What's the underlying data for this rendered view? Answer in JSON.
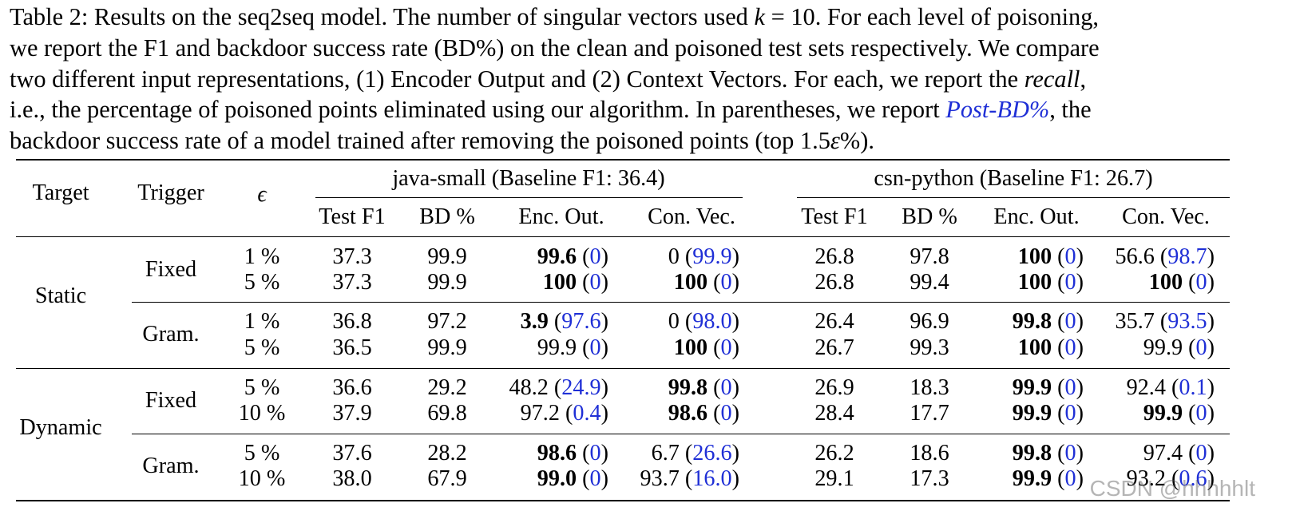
{
  "caption": {
    "lines": [
      [
        "Table 2: Results on the seq2seq model. The number of singular vectors used ",
        {
          "math": "k"
        },
        " = 10. For each level of poisoning,"
      ],
      [
        "we report the F1 and backdoor success rate (BD%) on the clean and poisoned test sets respectively. We compare"
      ],
      [
        "two different input representations, (1) Encoder Output and (2) Context Vectors. For each, we report the ",
        {
          "ital": "recall"
        },
        ","
      ],
      [
        "i.e., the percentage of poisoned points eliminated using our algorithm. In parentheses, we report ",
        {
          "link": "Post-BD%"
        },
        ", the"
      ],
      [
        "backdoor success rate of a model trained after removing the poisoned points (top 1.5",
        {
          "math": "ε"
        },
        "%)."
      ]
    ]
  },
  "header": {
    "target": "Target",
    "trigger": "Trigger",
    "epsilon": "ϵ",
    "group1": "java-small (Baseline F1: 36.4)",
    "group2": "csn-python (Baseline F1: 26.7)",
    "cols": [
      "Test F1",
      "BD %",
      "Enc. Out.",
      "Con. Vec.",
      "Test F1",
      "BD %",
      "Enc. Out.",
      "Con. Vec."
    ]
  },
  "targets": [
    "Static",
    "Dynamic"
  ],
  "triggers": [
    "Fixed",
    "Gram.",
    "Fixed",
    "Gram."
  ],
  "rows": [
    {
      "eps": "1 %",
      "js_f1": "37.3",
      "js_bd": "99.9",
      "js_enc": {
        "v": "99.6",
        "p": "0",
        "b": true
      },
      "js_con": {
        "v": "0",
        "p": "99.9",
        "b": false
      },
      "py_f1": "26.8",
      "py_bd": "97.8",
      "py_enc": {
        "v": "100",
        "p": "0",
        "b": true
      },
      "py_con": {
        "v": "56.6",
        "p": "98.7",
        "b": false
      }
    },
    {
      "eps": "5 %",
      "js_f1": "37.3",
      "js_bd": "99.9",
      "js_enc": {
        "v": "100",
        "p": "0",
        "b": true
      },
      "js_con": {
        "v": "100",
        "p": "0",
        "b": true
      },
      "py_f1": "26.8",
      "py_bd": "99.4",
      "py_enc": {
        "v": "100",
        "p": "0",
        "b": true
      },
      "py_con": {
        "v": "100",
        "p": "0",
        "b": true
      }
    },
    {
      "eps": "1 %",
      "js_f1": "36.8",
      "js_bd": "97.2",
      "js_enc": {
        "v": "3.9",
        "p": "97.6",
        "b": true
      },
      "js_con": {
        "v": "0",
        "p": "98.0",
        "b": false
      },
      "py_f1": "26.4",
      "py_bd": "96.9",
      "py_enc": {
        "v": "99.8",
        "p": "0",
        "b": true
      },
      "py_con": {
        "v": "35.7",
        "p": "93.5",
        "b": false
      }
    },
    {
      "eps": "5 %",
      "js_f1": "36.5",
      "js_bd": "99.9",
      "js_enc": {
        "v": "99.9",
        "p": "0",
        "b": false
      },
      "js_con": {
        "v": "100",
        "p": "0",
        "b": true
      },
      "py_f1": "26.7",
      "py_bd": "99.3",
      "py_enc": {
        "v": "100",
        "p": "0",
        "b": true
      },
      "py_con": {
        "v": "99.9",
        "p": "0",
        "b": false
      }
    },
    {
      "eps": "5 %",
      "js_f1": "36.6",
      "js_bd": "29.2",
      "js_enc": {
        "v": "48.2",
        "p": "24.9",
        "b": false
      },
      "js_con": {
        "v": "99.8",
        "p": "0",
        "b": true
      },
      "py_f1": "26.9",
      "py_bd": "18.3",
      "py_enc": {
        "v": "99.9",
        "p": "0",
        "b": true
      },
      "py_con": {
        "v": "92.4",
        "p": "0.1",
        "b": false
      }
    },
    {
      "eps": "10 %",
      "js_f1": "37.9",
      "js_bd": "69.8",
      "js_enc": {
        "v": "97.2",
        "p": "0.4",
        "b": false
      },
      "js_con": {
        "v": "98.6",
        "p": "0",
        "b": true
      },
      "py_f1": "28.4",
      "py_bd": "17.7",
      "py_enc": {
        "v": "99.9",
        "p": "0",
        "b": true
      },
      "py_con": {
        "v": "99.9",
        "p": "0",
        "b": true
      }
    },
    {
      "eps": "5 %",
      "js_f1": "37.6",
      "js_bd": "28.2",
      "js_enc": {
        "v": "98.6",
        "p": "0",
        "b": true
      },
      "js_con": {
        "v": "6.7",
        "p": "26.6",
        "b": false
      },
      "py_f1": "26.2",
      "py_bd": "18.6",
      "py_enc": {
        "v": "99.8",
        "p": "0",
        "b": true
      },
      "py_con": {
        "v": "97.4",
        "p": "0",
        "b": false
      }
    },
    {
      "eps": "10 %",
      "js_f1": "38.0",
      "js_bd": "67.9",
      "js_enc": {
        "v": "99.0",
        "p": "0",
        "b": true
      },
      "js_con": {
        "v": "93.7",
        "p": "16.0",
        "b": false
      },
      "py_f1": "29.1",
      "py_bd": "17.3",
      "py_enc": {
        "v": "99.9",
        "p": "0",
        "b": true
      },
      "py_con": {
        "v": "93.2",
        "p": "0.6",
        "b": false
      }
    }
  ],
  "watermark": "CSDN @hhhhhlt",
  "colors": {
    "link": "#1f2fd6",
    "text": "#000000"
  }
}
